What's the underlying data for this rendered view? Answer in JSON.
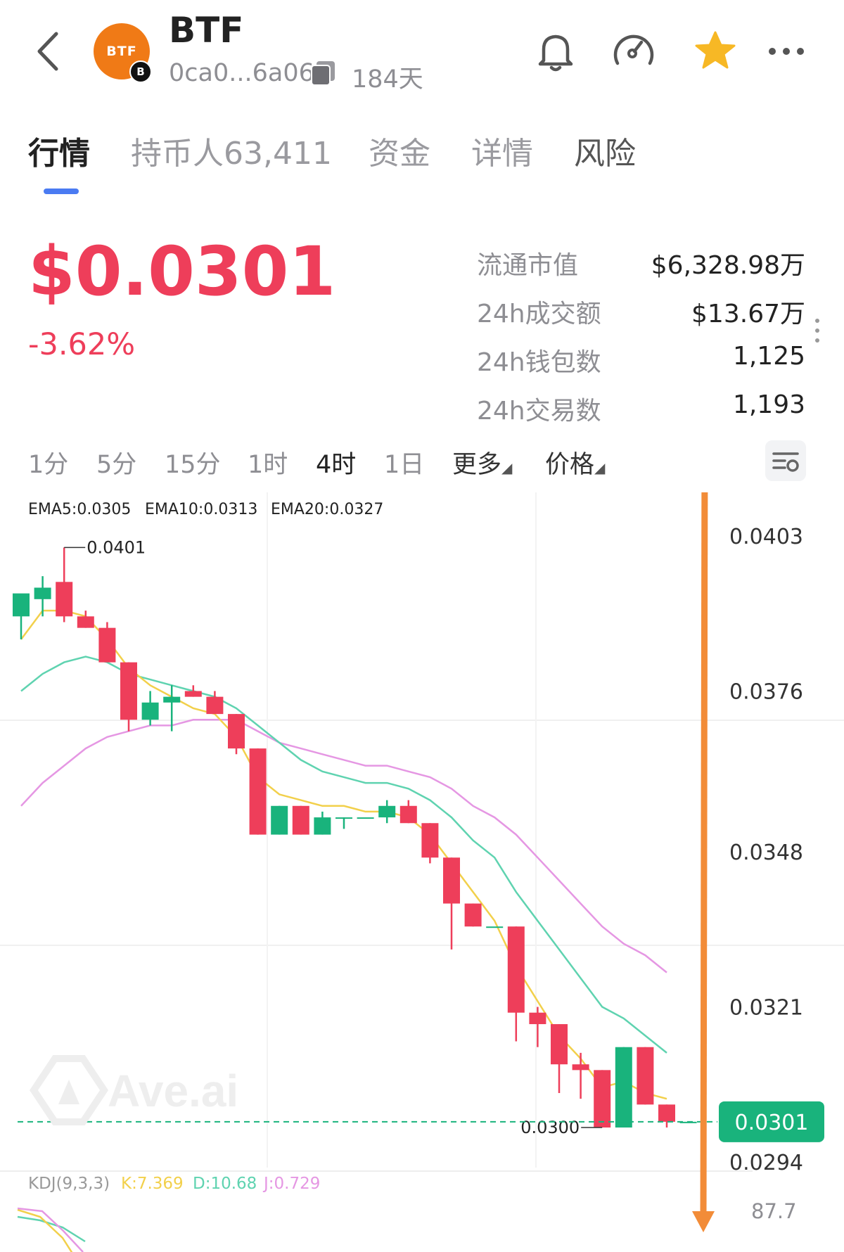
{
  "header": {
    "coin_name": "BTF",
    "logo_text": "BTF",
    "chain_badge": "B",
    "address": "0ca0...6a06",
    "age": "184天",
    "icons": [
      "back-icon",
      "bell-icon",
      "gauge-icon",
      "star-icon",
      "more-icon"
    ],
    "star_color": "#f7b825"
  },
  "tabs": [
    {
      "label": "行情",
      "active": true
    },
    {
      "label": "持币人63,411",
      "active": false
    },
    {
      "label": "资金",
      "active": false
    },
    {
      "label": "详情",
      "active": false
    },
    {
      "label": "风险",
      "active": false
    }
  ],
  "price": {
    "value": "$0.0301",
    "change": "-3.62%",
    "color": "#ee3e5a"
  },
  "stats": [
    {
      "label": "流通市值",
      "value": "$6,328.98万"
    },
    {
      "label": "24h成交额",
      "value": "$13.67万"
    },
    {
      "label": "24h钱包数",
      "value": "1,125"
    },
    {
      "label": "24h交易数",
      "value": "1,193"
    }
  ],
  "timeframes": [
    {
      "label": "1分",
      "active": false
    },
    {
      "label": "5分",
      "active": false
    },
    {
      "label": "15分",
      "active": false
    },
    {
      "label": "1时",
      "active": false
    },
    {
      "label": "4时",
      "active": true
    },
    {
      "label": "1日",
      "active": false
    }
  ],
  "more_label": "更多",
  "price_label": "价格",
  "ema_legend": {
    "ema5": "EMA5:0.0305",
    "ema10": "EMA10:0.0313",
    "ema20": "EMA20:0.0327",
    "colors": {
      "ema5": "#f2d04b",
      "ema10": "#5fd3b0",
      "ema20": "#e597e3"
    }
  },
  "watermark": "Ave.ai",
  "kdj": {
    "name": "KDJ(9,3,3)",
    "k": "K:7.369",
    "d": "D:10.68",
    "j": "J:0.729",
    "axis_label": "87.7"
  },
  "chart_data": {
    "type": "candlestick",
    "ylim": [
      0.0294,
      0.0403
    ],
    "y_ticks": [
      "0.0403",
      "0.0376",
      "0.0348",
      "0.0321",
      "0.0294"
    ],
    "current_price_label": "0.0301",
    "high_label": "0.0401",
    "low_label": "0.0300",
    "up_color": "#19b37c",
    "down_color": "#ee3e5a",
    "candles": [
      {
        "o": 0.0389,
        "h": 0.0392,
        "c": 0.0393,
        "l": 0.0385
      },
      {
        "o": 0.0392,
        "h": 0.0396,
        "c": 0.0394,
        "l": 0.0389
      },
      {
        "o": 0.0395,
        "h": 0.0401,
        "c": 0.0389,
        "l": 0.0388
      },
      {
        "o": 0.0389,
        "h": 0.039,
        "c": 0.0387,
        "l": 0.0387
      },
      {
        "o": 0.0387,
        "h": 0.0388,
        "c": 0.0381,
        "l": 0.0381
      },
      {
        "o": 0.0381,
        "h": 0.0381,
        "c": 0.0371,
        "l": 0.0369
      },
      {
        "o": 0.0371,
        "h": 0.0376,
        "c": 0.0374,
        "l": 0.037
      },
      {
        "o": 0.0374,
        "h": 0.0377,
        "c": 0.0375,
        "l": 0.0369
      },
      {
        "o": 0.0376,
        "h": 0.0377,
        "c": 0.0375,
        "l": 0.0375
      },
      {
        "o": 0.0375,
        "h": 0.0376,
        "c": 0.0372,
        "l": 0.0372
      },
      {
        "o": 0.0372,
        "h": 0.0372,
        "c": 0.0366,
        "l": 0.0365
      },
      {
        "o": 0.0366,
        "h": 0.0366,
        "c": 0.0351,
        "l": 0.0351
      },
      {
        "o": 0.0351,
        "h": 0.0356,
        "c": 0.0356,
        "l": 0.0351
      },
      {
        "o": 0.0356,
        "h": 0.0356,
        "c": 0.0351,
        "l": 0.0351
      },
      {
        "o": 0.0351,
        "h": 0.0355,
        "c": 0.0354,
        "l": 0.0351
      },
      {
        "o": 0.0354,
        "h": 0.0354,
        "c": 0.0354,
        "l": 0.0352
      },
      {
        "o": 0.0354,
        "h": 0.0354,
        "c": 0.0354,
        "l": 0.0354
      },
      {
        "o": 0.0354,
        "h": 0.0357,
        "c": 0.0356,
        "l": 0.0353
      },
      {
        "o": 0.0356,
        "h": 0.0357,
        "c": 0.0353,
        "l": 0.0353
      },
      {
        "o": 0.0353,
        "h": 0.0353,
        "c": 0.0347,
        "l": 0.0346
      },
      {
        "o": 0.0347,
        "h": 0.0347,
        "c": 0.0339,
        "l": 0.0331
      },
      {
        "o": 0.0339,
        "h": 0.0339,
        "c": 0.0335,
        "l": 0.0335
      },
      {
        "o": 0.0335,
        "h": 0.0335,
        "c": 0.0335,
        "l": 0.0335
      },
      {
        "o": 0.0335,
        "h": 0.0335,
        "c": 0.032,
        "l": 0.0315
      },
      {
        "o": 0.032,
        "h": 0.0321,
        "c": 0.0318,
        "l": 0.0314
      },
      {
        "o": 0.0318,
        "h": 0.0318,
        "c": 0.0311,
        "l": 0.0306
      },
      {
        "o": 0.0311,
        "h": 0.0313,
        "c": 0.031,
        "l": 0.0305
      },
      {
        "o": 0.031,
        "h": 0.031,
        "c": 0.03,
        "l": 0.03
      },
      {
        "o": 0.03,
        "h": 0.0314,
        "c": 0.0314,
        "l": 0.03
      },
      {
        "o": 0.0314,
        "h": 0.0314,
        "c": 0.0304,
        "l": 0.0304
      },
      {
        "o": 0.0304,
        "h": 0.0304,
        "c": 0.0301,
        "l": 0.03
      },
      {
        "o": 0.0301,
        "h": 0.0301,
        "c": 0.0301,
        "l": 0.0301
      }
    ],
    "ema5": [
      0.0385,
      0.039,
      0.039,
      0.0389,
      0.0385,
      0.038,
      0.0377,
      0.0375,
      0.0373,
      0.0372,
      0.0368,
      0.0361,
      0.0358,
      0.0357,
      0.0356,
      0.0356,
      0.0355,
      0.0355,
      0.0354,
      0.0351,
      0.0346,
      0.0341,
      0.0336,
      0.0328,
      0.0322,
      0.0316,
      0.0312,
      0.0307,
      0.0308,
      0.0306,
      0.0305
    ],
    "ema10": [
      0.0376,
      0.0379,
      0.0381,
      0.0382,
      0.0381,
      0.0379,
      0.0378,
      0.0377,
      0.0376,
      0.0375,
      0.0373,
      0.037,
      0.0367,
      0.0364,
      0.0362,
      0.0361,
      0.036,
      0.036,
      0.0359,
      0.0357,
      0.0354,
      0.035,
      0.0347,
      0.0341,
      0.0336,
      0.0331,
      0.0326,
      0.0321,
      0.0319,
      0.0316,
      0.0313
    ],
    "ema20": [
      0.0356,
      0.036,
      0.0363,
      0.0366,
      0.0368,
      0.0369,
      0.037,
      0.037,
      0.0371,
      0.0371,
      0.0371,
      0.0369,
      0.0367,
      0.0366,
      0.0365,
      0.0364,
      0.0363,
      0.0363,
      0.0362,
      0.0361,
      0.0359,
      0.0356,
      0.0354,
      0.0351,
      0.0347,
      0.0343,
      0.0339,
      0.0335,
      0.0332,
      0.033,
      0.0327
    ],
    "kdj_k": [
      88,
      86,
      80,
      70
    ],
    "kdj_d": [
      86,
      85,
      83,
      79
    ]
  }
}
